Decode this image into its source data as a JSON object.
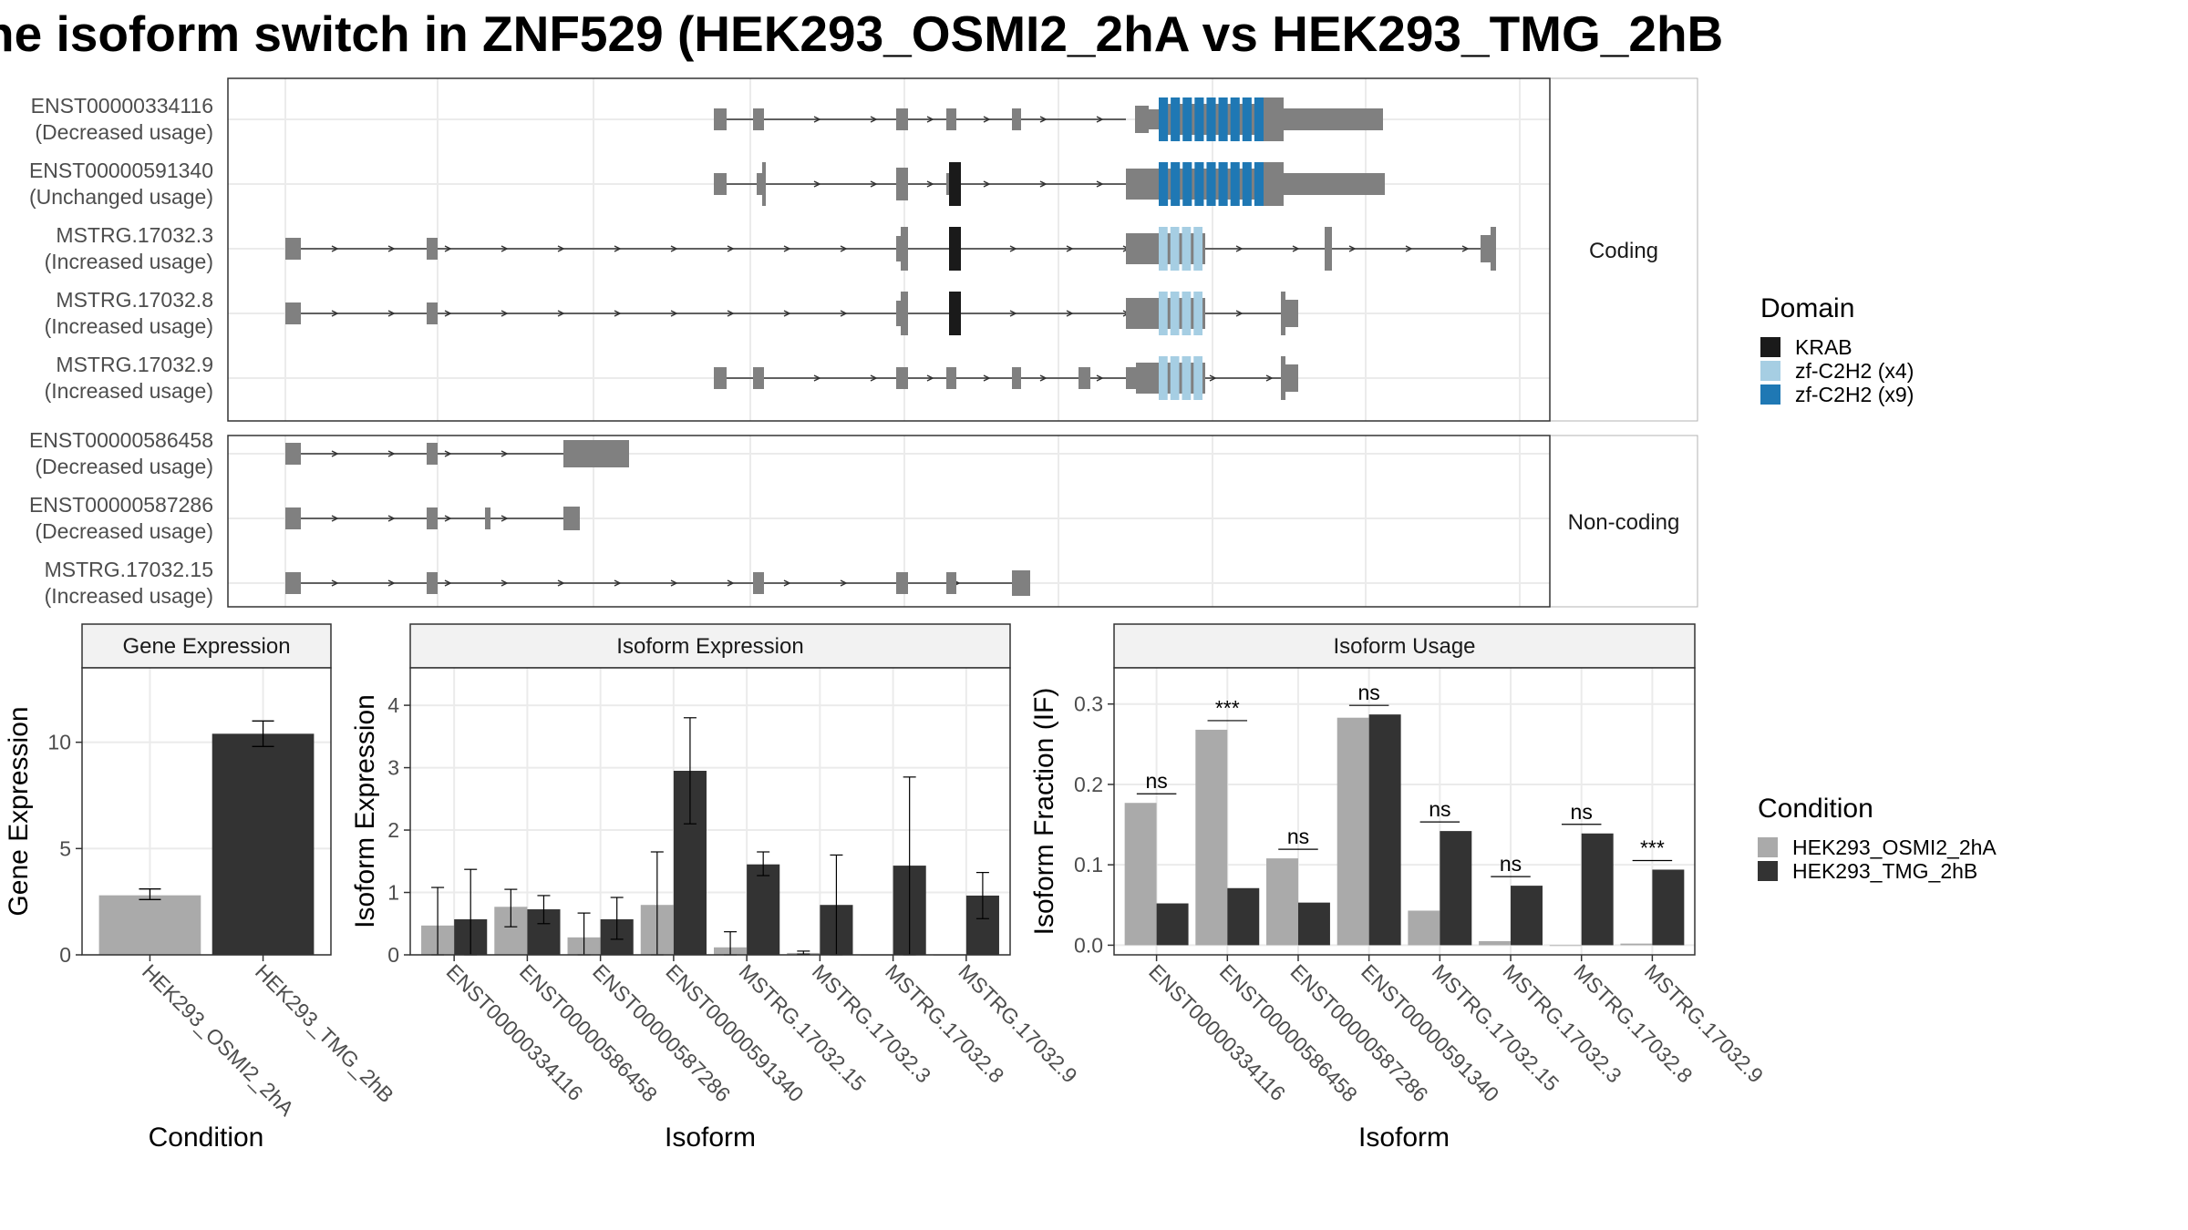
{
  "title": "he isoform switch in ZNF529 (HEK293_OSMI2_2hA vs HEK293_TMG_2hB",
  "colors": {
    "exon": "#808080",
    "krab": "#1a1a1a",
    "zf4": "#a6cee3",
    "zf9": "#1f78b4",
    "cond1": "#aaaaaa",
    "cond2": "#333333",
    "grid": "#ebebeb",
    "strip": "#f2f2f2"
  },
  "structure": {
    "panels": [
      {
        "label": "Coding",
        "transcripts": [
          {
            "id": "ENST00000334116",
            "usage": "(Decreased usage)"
          },
          {
            "id": "ENST00000591340",
            "usage": "(Unchanged usage)"
          },
          {
            "id": "MSTRG.17032.3",
            "usage": "(Increased usage)"
          },
          {
            "id": "MSTRG.17032.8",
            "usage": "(Increased usage)"
          },
          {
            "id": "MSTRG.17032.9",
            "usage": "(Increased usage)"
          }
        ]
      },
      {
        "label": "Non-coding",
        "transcripts": [
          {
            "id": "ENST00000586458",
            "usage": "(Decreased usage)"
          },
          {
            "id": "ENST00000587286",
            "usage": "(Decreased usage)"
          },
          {
            "id": "MSTRG.17032.15",
            "usage": "(Increased usage)"
          }
        ]
      }
    ]
  },
  "legend_domain": {
    "title": "Domain",
    "items": [
      {
        "label": "KRAB",
        "color": "#1a1a1a"
      },
      {
        "label": "zf-C2H2 (x4)",
        "color": "#a6cee3"
      },
      {
        "label": "zf-C2H2 (x9)",
        "color": "#1f78b4"
      }
    ]
  },
  "legend_condition": {
    "title": "Condition",
    "items": [
      {
        "label": "HEK293_OSMI2_2hA",
        "color": "#aaaaaa"
      },
      {
        "label": "HEK293_TMG_2hB",
        "color": "#333333"
      }
    ]
  },
  "chart_data": [
    {
      "type": "bar",
      "title": "Gene Expression",
      "xlabel": "Condition",
      "ylabel": "Gene Expression",
      "categories": [
        "HEK293_OSMI2_2hA",
        "HEK293_TMG_2hB"
      ],
      "values": [
        2.8,
        10.4
      ],
      "errors": [
        [
          2.6,
          3.1
        ],
        [
          9.8,
          11.0
        ]
      ],
      "ylim": [
        0,
        13.5
      ],
      "yticks": [
        0,
        5,
        10
      ]
    },
    {
      "type": "bar",
      "title": "Isoform Expression",
      "xlabel": "Isoform",
      "ylabel": "Isoform Expression",
      "categories": [
        "ENST00000334116",
        "ENST00000586458",
        "ENST00000587286",
        "ENST00000591340",
        "MSTRG.17032.15",
        "MSTRG.17032.3",
        "MSTRG.17032.8",
        "MSTRG.17032.9"
      ],
      "series": [
        {
          "name": "HEK293_OSMI2_2hA",
          "values": [
            0.47,
            0.77,
            0.28,
            0.8,
            0.12,
            0.03,
            0.0,
            0.0
          ],
          "errors": [
            [
              0,
              1.08
            ],
            [
              0.45,
              1.05
            ],
            [
              0,
              0.67
            ],
            [
              0,
              1.65
            ],
            [
              0,
              0.37
            ],
            [
              0.01,
              0.06
            ],
            null,
            null
          ]
        },
        {
          "name": "HEK293_TMG_2hB",
          "values": [
            0.57,
            0.73,
            0.57,
            2.95,
            1.45,
            0.8,
            1.43,
            0.95
          ],
          "errors": [
            [
              0,
              1.37
            ],
            [
              0.5,
              0.95
            ],
            [
              0.25,
              0.92
            ],
            [
              2.1,
              3.8
            ],
            [
              1.27,
              1.65
            ],
            [
              0,
              1.6
            ],
            [
              0,
              2.85
            ],
            [
              0.58,
              1.32
            ]
          ]
        }
      ],
      "ylim": [
        0,
        4.6
      ],
      "yticks": [
        0,
        1,
        2,
        3,
        4
      ]
    },
    {
      "type": "bar",
      "title": "Isoform Usage",
      "xlabel": "Isoform",
      "ylabel": "Isoform Fraction (IF)",
      "categories": [
        "ENST00000334116",
        "ENST00000586458",
        "ENST00000587286",
        "ENST00000591340",
        "MSTRG.17032.15",
        "MSTRG.17032.3",
        "MSTRG.17032.8",
        "MSTRG.17032.9"
      ],
      "series": [
        {
          "name": "HEK293_OSMI2_2hA",
          "values": [
            0.177,
            0.268,
            0.108,
            0.283,
            0.043,
            0.005,
            0.0,
            0.002
          ]
        },
        {
          "name": "HEK293_TMG_2hB",
          "values": [
            0.052,
            0.071,
            0.053,
            0.287,
            0.142,
            0.074,
            0.139,
            0.094
          ]
        }
      ],
      "significance": [
        "ns",
        "***",
        "ns",
        "ns",
        "ns",
        "ns",
        "ns",
        "***"
      ],
      "ylim": [
        -0.012,
        0.345
      ],
      "yticks": [
        0.0,
        0.1,
        0.2,
        0.3
      ],
      "ytick_labels": [
        "0.0",
        "0.1",
        "0.2",
        "0.3"
      ]
    }
  ]
}
